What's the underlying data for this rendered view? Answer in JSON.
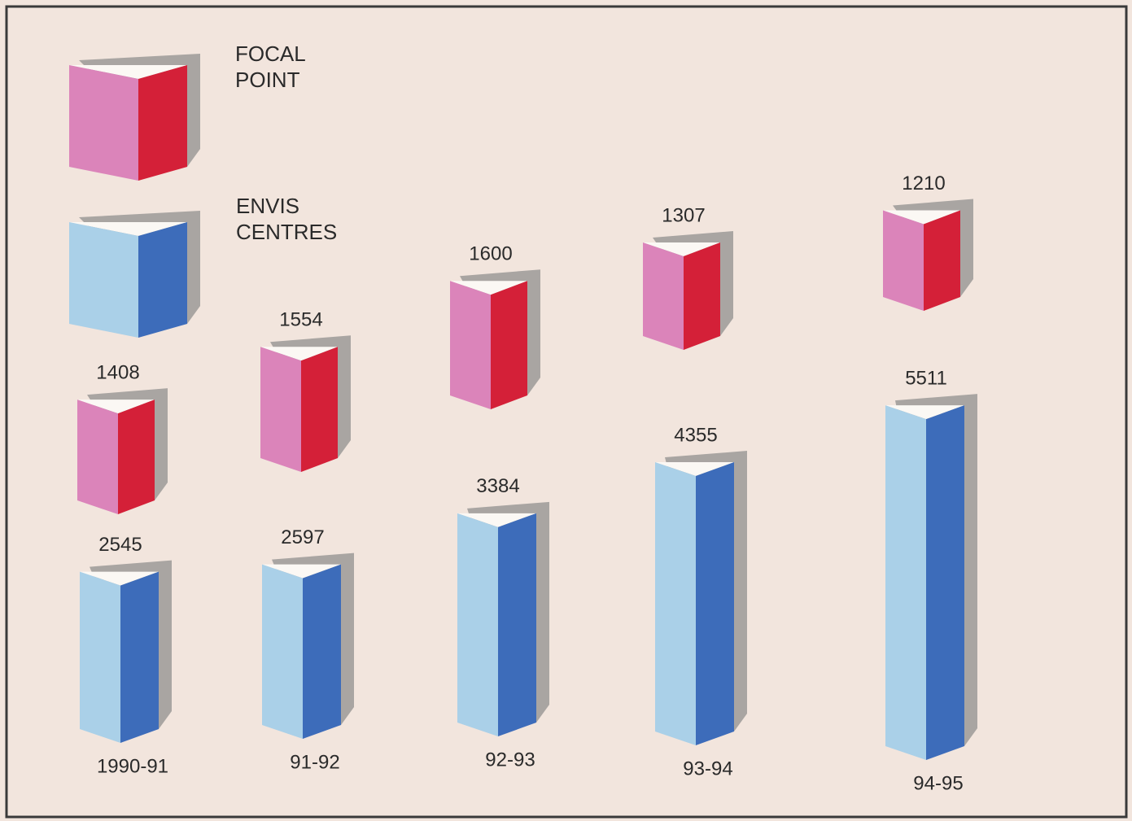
{
  "chart_data": {
    "type": "prism",
    "categories": [
      "1990-91",
      "91-92",
      "92-93",
      "93-94",
      "94-95"
    ],
    "series": [
      {
        "name": "FOCAL POINT",
        "color": "#db84ba",
        "side_color": "#d42038",
        "values": [
          1408,
          1554,
          1600,
          1307,
          1210
        ]
      },
      {
        "name": "ENVIS CENTRES",
        "color": "#aad0e8",
        "side_color": "#3d6cba",
        "values": [
          2545,
          2597,
          3384,
          4355,
          5511
        ]
      }
    ]
  }
}
